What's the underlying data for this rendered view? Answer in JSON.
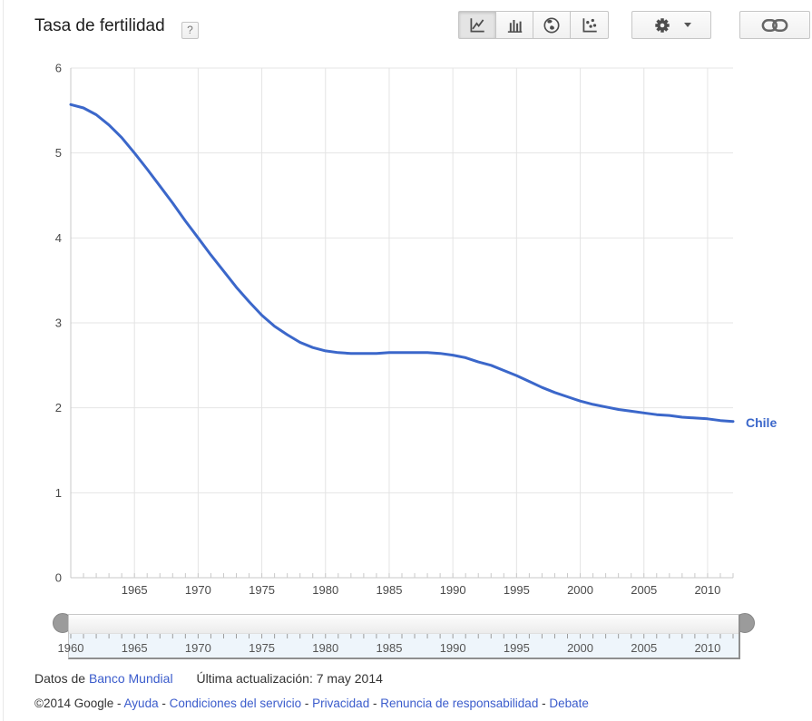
{
  "header": {
    "title": "Tasa de fertilidad",
    "help_label": "?"
  },
  "toolbar": {
    "chart_type_buttons": [
      {
        "name": "line-chart",
        "icon": "line-chart-icon",
        "selected": true
      },
      {
        "name": "bar-chart",
        "icon": "bar-chart-icon",
        "selected": false
      },
      {
        "name": "map",
        "icon": "globe-icon",
        "selected": false
      },
      {
        "name": "scatter-chart",
        "icon": "scatter-icon",
        "selected": false
      }
    ],
    "settings_icon": "gear-icon",
    "settings_caret_icon": "chevron-down-icon",
    "link_icon": "link-icon"
  },
  "chart_data": {
    "type": "line",
    "title": "Tasa de fertilidad",
    "xlabel": "",
    "ylabel": "",
    "xlim": [
      1960,
      2012
    ],
    "ylim": [
      0,
      6
    ],
    "yticks": [
      0,
      1,
      2,
      3,
      4,
      5,
      6
    ],
    "xticks": [
      1965,
      1970,
      1975,
      1980,
      1985,
      1990,
      1995,
      2000,
      2005,
      2010
    ],
    "grid": true,
    "legend_position": "end-of-line-label",
    "series": [
      {
        "name": "Chile",
        "color": "#3b67ca",
        "x": [
          1960,
          1961,
          1962,
          1963,
          1964,
          1965,
          1966,
          1967,
          1968,
          1969,
          1970,
          1971,
          1972,
          1973,
          1974,
          1975,
          1976,
          1977,
          1978,
          1979,
          1980,
          1981,
          1982,
          1983,
          1984,
          1985,
          1986,
          1987,
          1988,
          1989,
          1990,
          1991,
          1992,
          1993,
          1994,
          1995,
          1996,
          1997,
          1998,
          1999,
          2000,
          2001,
          2002,
          2003,
          2004,
          2005,
          2006,
          2007,
          2008,
          2009,
          2010,
          2011,
          2012
        ],
        "values": [
          5.57,
          5.53,
          5.45,
          5.33,
          5.18,
          5.0,
          4.81,
          4.61,
          4.41,
          4.2,
          4.0,
          3.8,
          3.61,
          3.42,
          3.25,
          3.09,
          2.96,
          2.86,
          2.77,
          2.71,
          2.67,
          2.65,
          2.64,
          2.64,
          2.64,
          2.65,
          2.65,
          2.65,
          2.65,
          2.64,
          2.62,
          2.59,
          2.54,
          2.5,
          2.44,
          2.38,
          2.31,
          2.24,
          2.18,
          2.13,
          2.08,
          2.04,
          2.01,
          1.98,
          1.96,
          1.94,
          1.92,
          1.91,
          1.89,
          1.88,
          1.87,
          1.85,
          1.84
        ]
      }
    ]
  },
  "slider": {
    "ticks": [
      1960,
      1965,
      1970,
      1975,
      1980,
      1985,
      1990,
      1995,
      2000,
      2005,
      2010
    ]
  },
  "footer": {
    "source_prefix": "Datos de",
    "source_link": "Banco Mundial",
    "updated": "Última actualización: 7 may 2014",
    "copyright": "©2014 Google",
    "link_separator": "-",
    "links": [
      "Ayuda",
      "Condiciones del servicio",
      "Privacidad",
      "Renuncia de responsabilidad",
      "Debate"
    ]
  },
  "colors": {
    "line": "#3b67ca",
    "link_text": "#3b5ccc",
    "grid": "#e4e4e4",
    "axis": "#c9c9c9",
    "slider_ruler_bg": "#eef5fb",
    "handle": "#9b9b9b"
  }
}
